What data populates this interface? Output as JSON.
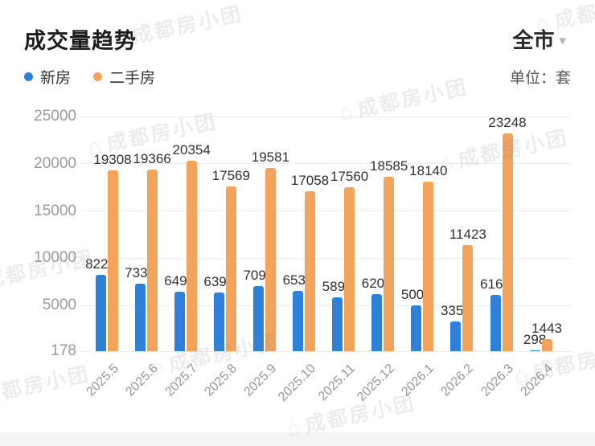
{
  "header": {
    "title": "成交量趋势",
    "region": "全市",
    "region_caret": "▾"
  },
  "legend": {
    "items": [
      {
        "label": "新房",
        "color": "#2e80d9"
      },
      {
        "label": "二手房",
        "color": "#f2a35c"
      }
    ],
    "unit": "单位：套"
  },
  "watermark": {
    "icon": "⌂",
    "text": "成都房小团"
  },
  "chart_data": {
    "type": "bar",
    "title": "成交量趋势",
    "unit": "套",
    "categories": [
      "2025.5",
      "2025.6",
      "2025.7",
      "2025.8",
      "2025.9",
      "2025.10",
      "2025.11",
      "2025.12",
      "2026.1",
      "2026.2",
      "2026.3",
      "2026.4"
    ],
    "series": [
      {
        "name": "新房",
        "color": "#2e80d9",
        "values": [
          8227,
          7336,
          6491,
          6398,
          7093,
          6536,
          5898,
          6203,
          5007,
          3354,
          6165,
          298
        ]
      },
      {
        "name": "二手房",
        "color": "#f2a35c",
        "values": [
          19308,
          19366,
          20354,
          17569,
          19581,
          17058,
          17560,
          18585,
          18140,
          11423,
          23248,
          1443
        ]
      }
    ],
    "ylim": [
      178,
      25000
    ],
    "y_ticks": [
      25000,
      20000,
      15000,
      10000,
      5000,
      178
    ],
    "grid": true,
    "value_labels": true,
    "legend_position": "top-left",
    "xlabel": "",
    "ylabel": ""
  }
}
